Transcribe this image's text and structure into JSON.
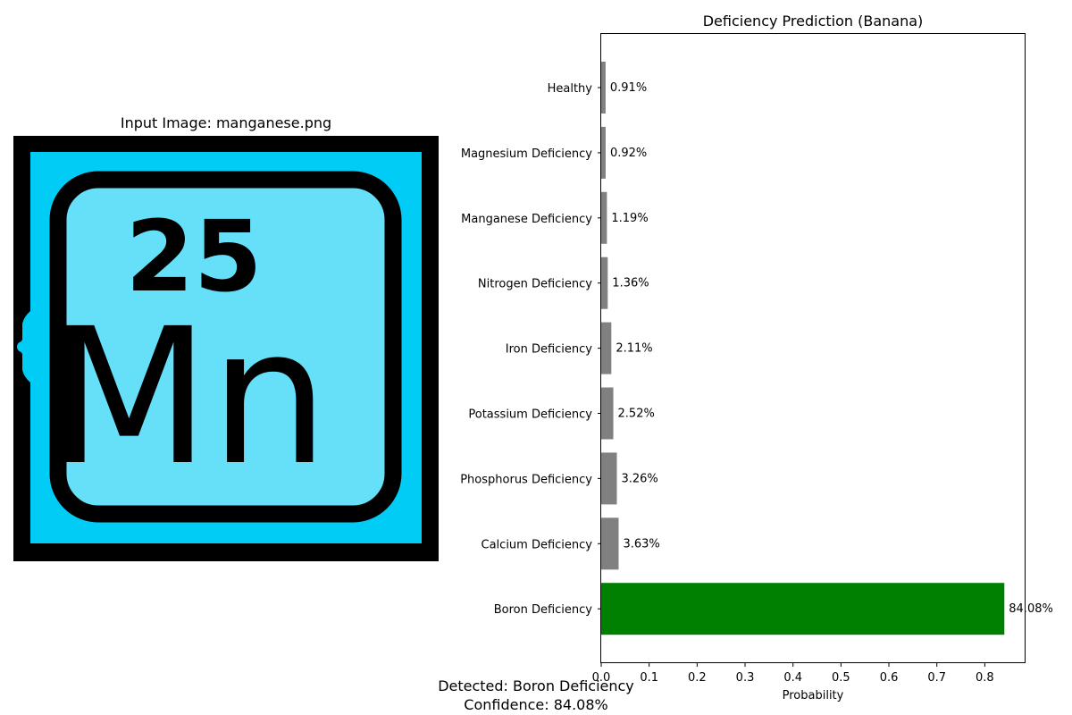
{
  "left_panel": {
    "title": "Input Image: manganese.png",
    "image": {
      "description": "periodic table tile icon",
      "atomic_number": "25",
      "symbol": "Mn",
      "colors": {
        "outer": "#00ccf5",
        "inner": "#66e0f8",
        "stroke": "#000000"
      }
    }
  },
  "chart_data": {
    "type": "bar",
    "orientation": "horizontal",
    "title": "Deficiency Prediction (Banana)",
    "xlabel": "Probability",
    "ylabel": "",
    "xlim": [
      0,
      0.885
    ],
    "xticks": [
      0.0,
      0.1,
      0.2,
      0.3,
      0.4,
      0.5,
      0.6,
      0.7,
      0.8
    ],
    "xtick_labels": [
      "0.0",
      "0.1",
      "0.2",
      "0.3",
      "0.4",
      "0.5",
      "0.6",
      "0.7",
      "0.8"
    ],
    "categories": [
      "Healthy",
      "Magnesium Deficiency",
      "Manganese Deficiency",
      "Nitrogen Deficiency",
      "Iron Deficiency",
      "Potassium Deficiency",
      "Phosphorus Deficiency",
      "Calcium Deficiency",
      "Boron Deficiency"
    ],
    "values": [
      0.0091,
      0.0092,
      0.0119,
      0.0136,
      0.0211,
      0.0252,
      0.0326,
      0.0363,
      0.8408
    ],
    "data_labels": [
      "0.91%",
      "0.92%",
      "1.19%",
      "1.36%",
      "2.11%",
      "2.52%",
      "3.26%",
      "3.63%",
      "84.08%"
    ],
    "bar_colors": [
      "#808080",
      "#808080",
      "#808080",
      "#808080",
      "#808080",
      "#808080",
      "#808080",
      "#808080",
      "#008000"
    ],
    "grid": false,
    "legend": "none"
  },
  "footer": {
    "detected": "Detected: Boron Deficiency",
    "confidence": "Confidence: 84.08%"
  }
}
